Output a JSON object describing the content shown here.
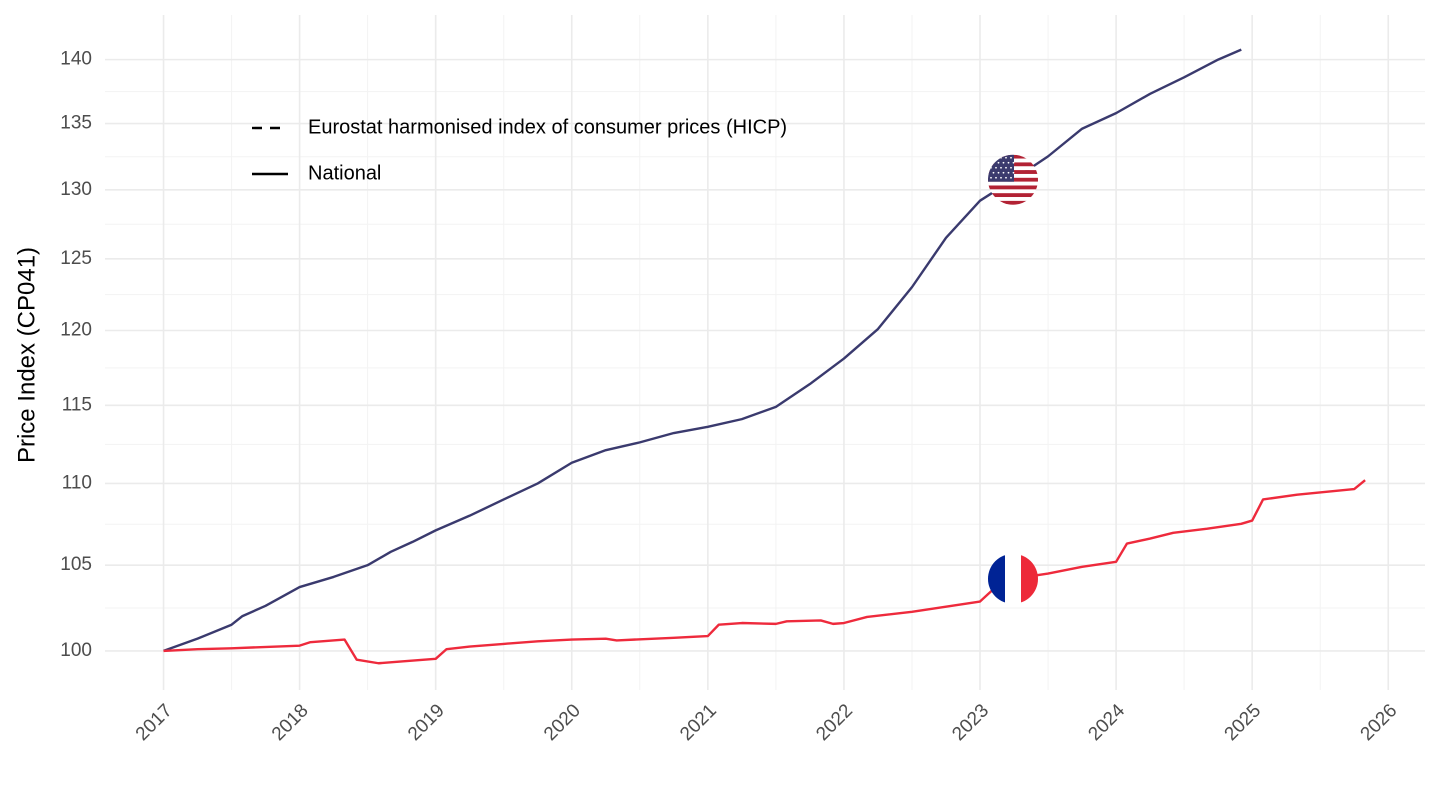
{
  "chart_data": {
    "type": "line",
    "y_label": "Price Index (CP041)",
    "log_y": true,
    "grid": true,
    "xlim": [
      2016.57,
      2026.27
    ],
    "ylim": [
      97.8,
      143.6
    ],
    "xticks": [
      2017,
      2018,
      2019,
      2020,
      2021,
      2022,
      2023,
      2024,
      2025,
      2026
    ],
    "yticks": [
      100,
      105,
      110,
      115,
      120,
      125,
      130,
      135,
      140
    ],
    "legend": [
      {
        "label": "Eurostat harmonised index of consumer prices (HICP)",
        "dashed": true
      },
      {
        "label": "National",
        "dashed": false
      }
    ],
    "series": [
      {
        "color": "#3a3a6e",
        "flag": "us",
        "x": [
          2017,
          2017.25,
          2017.5,
          2017.58,
          2017.75,
          2018,
          2018.25,
          2018.5,
          2018.67,
          2018.83,
          2019,
          2019.25,
          2019.5,
          2019.75,
          2020,
          2020.25,
          2020.5,
          2020.75,
          2021,
          2021.25,
          2021.5,
          2021.75,
          2022,
          2022.25,
          2022.5,
          2022.75,
          2023,
          2023.25,
          2023.5,
          2023.75,
          2024,
          2024.25,
          2024.5,
          2024.75,
          2024.92
        ],
        "values": [
          100,
          100.7,
          101.5,
          102.0,
          102.6,
          103.7,
          104.3,
          105.0,
          105.8,
          106.4,
          107.1,
          108.0,
          109.0,
          110.0,
          111.3,
          112.1,
          112.6,
          113.2,
          113.6,
          114.1,
          114.9,
          116.4,
          118.1,
          120.1,
          123.0,
          126.5,
          129.2,
          130.8,
          132.5,
          134.6,
          135.8,
          137.3,
          138.6,
          140.0,
          140.8
        ]
      },
      {
        "color": "#ee2a3c",
        "flag": "fr",
        "x": [
          2017,
          2017.25,
          2017.5,
          2018,
          2018.08,
          2018.33,
          2018.42,
          2018.58,
          2018.75,
          2019,
          2019.08,
          2019.25,
          2019.5,
          2019.75,
          2020,
          2020.25,
          2020.33,
          2020.75,
          2021,
          2021.08,
          2021.25,
          2021.5,
          2021.58,
          2021.83,
          2021.92,
          2022,
          2022.17,
          2022.5,
          2022.75,
          2023,
          2023.17,
          2023.5,
          2023.75,
          2024,
          2024.08,
          2024.25,
          2024.42,
          2024.67,
          2024.92,
          2025,
          2025.08,
          2025.33,
          2025.75,
          2025.83
        ],
        "values": [
          100,
          100.1,
          100.15,
          100.3,
          100.5,
          100.65,
          99.5,
          99.3,
          99.4,
          99.55,
          100.1,
          100.25,
          100.4,
          100.55,
          100.65,
          100.7,
          100.6,
          100.75,
          100.85,
          101.5,
          101.6,
          101.55,
          101.7,
          101.75,
          101.55,
          101.6,
          101.95,
          102.25,
          102.55,
          102.85,
          104.1,
          104.5,
          104.9,
          105.2,
          106.3,
          106.6,
          106.95,
          107.2,
          107.5,
          107.7,
          109.0,
          109.3,
          109.65,
          110.2
        ]
      }
    ]
  }
}
